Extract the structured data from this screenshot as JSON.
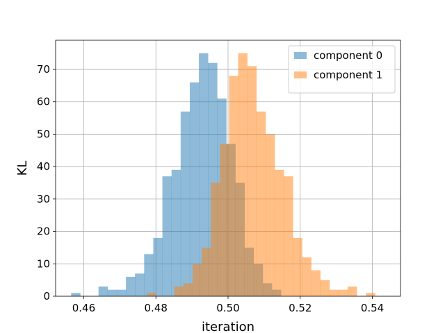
{
  "chart_data": {
    "type": "histogram",
    "xlabel": "iteration",
    "ylabel": "KL",
    "xlim": [
      0.4522,
      0.5478
    ],
    "ylim": [
      0,
      79
    ],
    "xticks": [
      0.46,
      0.48,
      0.5,
      0.52,
      0.54
    ],
    "xtick_labels": [
      "0.46",
      "0.48",
      "0.50",
      "0.52",
      "0.54"
    ],
    "yticks": [
      0,
      10,
      20,
      30,
      40,
      50,
      60,
      70
    ],
    "ytick_labels": [
      "0",
      "10",
      "20",
      "30",
      "40",
      "50",
      "60",
      "70"
    ],
    "grid": true,
    "legend_position": "top-right",
    "series": [
      {
        "name": "component 0",
        "color": "#1f77b4",
        "alpha": 0.5,
        "bin_start": 0.4565,
        "bin_width": 0.00253,
        "counts": [
          1,
          0,
          0,
          3,
          2,
          2,
          6,
          7,
          13,
          18,
          37,
          39,
          57,
          66,
          75,
          72,
          61,
          47,
          35,
          15,
          10,
          4,
          2
        ]
      },
      {
        "name": "component 1",
        "color": "#ff7f0e",
        "alpha": 0.5,
        "bin_start": 0.4775,
        "bin_width": 0.00253,
        "counts": [
          1,
          0,
          0,
          3,
          4,
          10,
          15,
          35,
          47,
          68,
          75,
          71,
          57,
          50,
          39,
          37,
          18,
          12,
          8,
          5,
          2,
          2,
          3,
          0,
          1
        ]
      }
    ]
  }
}
